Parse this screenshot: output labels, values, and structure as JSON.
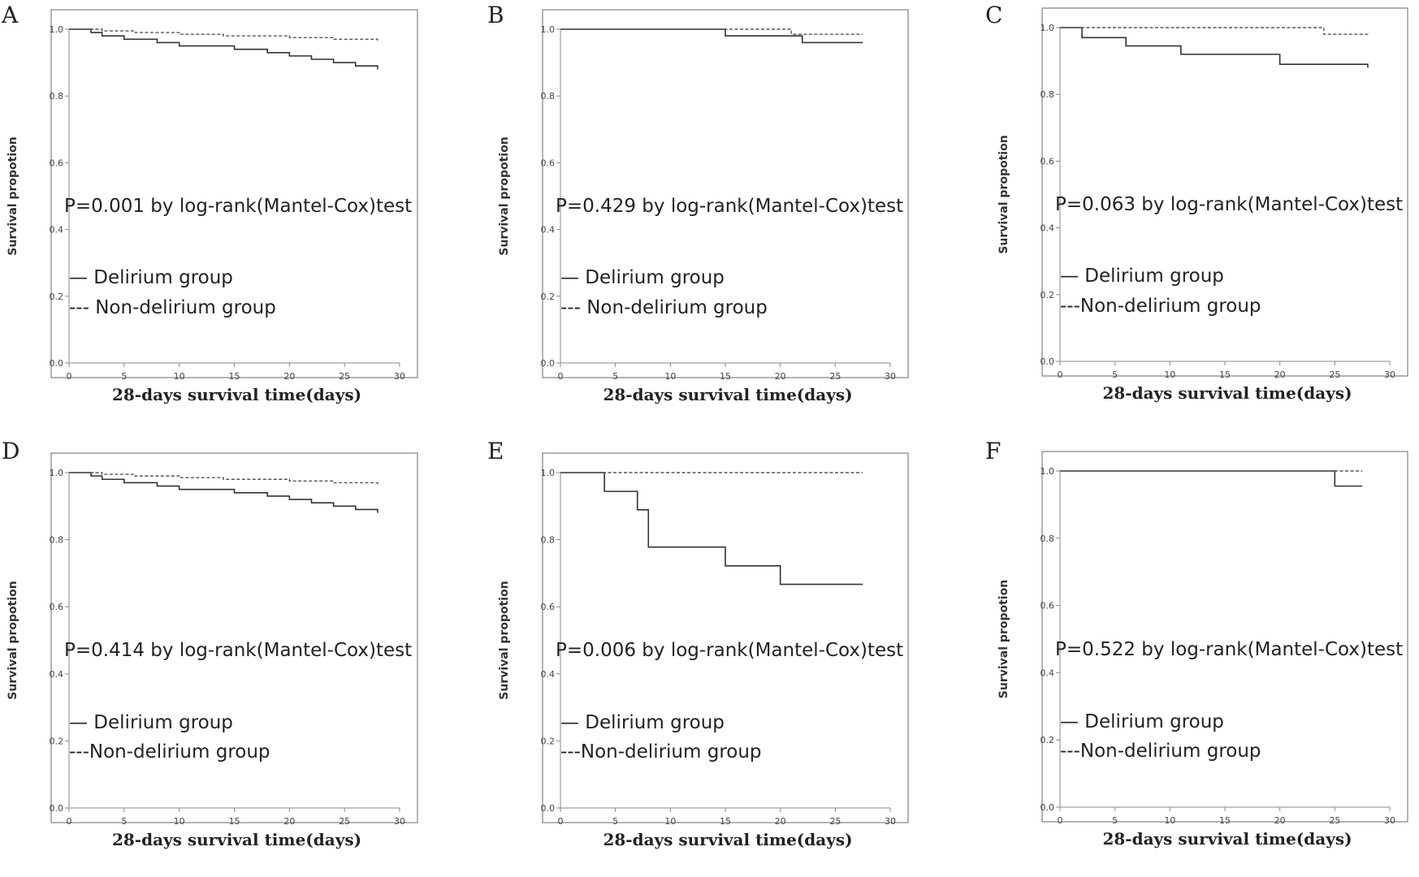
{
  "chart_data": [
    {
      "type": "line",
      "step": true,
      "panel": "A",
      "xlabel": "28-days survival time(days)",
      "ylabel": "Survival propotion",
      "xlim": [
        0,
        30
      ],
      "ylim": [
        0.0,
        1.0
      ],
      "xticks": [
        "0",
        "5",
        "10",
        "15",
        "20",
        "25",
        "30"
      ],
      "yticks": [
        "0.0",
        "0.2",
        "0.4",
        "0.6",
        "0.8",
        "1.0"
      ],
      "annotation": "P=0.001 by log-rank(Mantel-Cox)test",
      "grid": false,
      "legend": "bottom-left",
      "series": [
        {
          "name": "Delirium group",
          "style": "solid",
          "x": [
            0,
            2,
            3,
            5,
            8,
            10,
            12,
            15,
            18,
            20,
            22,
            24,
            26,
            28
          ],
          "y": [
            1.0,
            0.99,
            0.98,
            0.97,
            0.96,
            0.95,
            0.95,
            0.94,
            0.93,
            0.92,
            0.91,
            0.9,
            0.89,
            0.88
          ]
        },
        {
          "name": "Non-delirium group",
          "style": "dashed",
          "x": [
            0,
            3,
            6,
            10,
            14,
            20,
            24,
            28
          ],
          "y": [
            1.0,
            0.995,
            0.99,
            0.985,
            0.98,
            0.975,
            0.97,
            0.965
          ]
        }
      ]
    },
    {
      "type": "line",
      "step": true,
      "panel": "B",
      "xlabel": "28-days survival time(days)",
      "ylabel": "Survival propotion",
      "xlim": [
        0,
        30
      ],
      "ylim": [
        0.0,
        1.0
      ],
      "xticks": [
        "0",
        "5",
        "10",
        "15",
        "20",
        "25",
        "30"
      ],
      "yticks": [
        "0.0",
        "0.2",
        "0.4",
        "0.6",
        "0.8",
        "1.0"
      ],
      "annotation": "P=0.429 by log-rank(Mantel-Cox)test",
      "grid": false,
      "legend": "bottom-left",
      "series": [
        {
          "name": "Delirium group",
          "style": "solid",
          "x": [
            0,
            15,
            21,
            22,
            27.5
          ],
          "y": [
            1.0,
            0.98,
            0.98,
            0.96,
            0.96
          ]
        },
        {
          "name": "Non-delirium group",
          "style": "dashed",
          "x": [
            0,
            21,
            27.5
          ],
          "y": [
            1.0,
            0.985,
            0.985
          ]
        }
      ]
    },
    {
      "type": "line",
      "step": true,
      "panel": "C",
      "xlabel": "28-days survival time(days)",
      "ylabel": "Survival propotion",
      "xlim": [
        0,
        30
      ],
      "ylim": [
        0.0,
        1.0
      ],
      "xticks": [
        "0",
        "5",
        "10",
        "15",
        "20",
        "25",
        "30"
      ],
      "yticks": [
        "0.0",
        "0.2",
        "0.4",
        "0.6",
        "0.8",
        "1.0"
      ],
      "annotation": "P=0.063 by log-rank(Mantel-Cox)test",
      "grid": false,
      "legend": "bottom-left",
      "series": [
        {
          "name": "Delirium group",
          "style": "solid",
          "x": [
            0,
            2,
            6,
            11,
            20,
            28
          ],
          "y": [
            1.0,
            0.97,
            0.945,
            0.92,
            0.89,
            0.88
          ]
        },
        {
          "name": "Non-delirium group",
          "style": "dashed",
          "x": [
            0,
            24,
            28
          ],
          "y": [
            1.0,
            0.98,
            0.975
          ]
        }
      ]
    },
    {
      "type": "line",
      "step": true,
      "panel": "D",
      "xlabel": "28-days survival time(days)",
      "ylabel": "Survival propotion",
      "xlim": [
        0,
        30
      ],
      "ylim": [
        0.0,
        1.0
      ],
      "xticks": [
        "0",
        "5",
        "10",
        "15",
        "20",
        "25",
        "30"
      ],
      "yticks": [
        "0.0",
        "0.2",
        "0.4",
        "0.6",
        "0.8",
        "1.0"
      ],
      "annotation": "P=0.414 by log-rank(Mantel-Cox)test",
      "grid": false,
      "legend": "bottom-left",
      "series": [
        {
          "name": "Delirium group",
          "style": "solid",
          "x": [
            0,
            2,
            3,
            5,
            8,
            10,
            12,
            15,
            18,
            20,
            22,
            24,
            26,
            28
          ],
          "y": [
            1.0,
            0.99,
            0.98,
            0.97,
            0.96,
            0.95,
            0.95,
            0.94,
            0.93,
            0.92,
            0.91,
            0.9,
            0.89,
            0.88
          ]
        },
        {
          "name": "Non-delirium group",
          "style": "dashed",
          "x": [
            0,
            3,
            6,
            10,
            14,
            20,
            24,
            28
          ],
          "y": [
            1.0,
            0.995,
            0.99,
            0.985,
            0.98,
            0.975,
            0.97,
            0.965
          ]
        }
      ]
    },
    {
      "type": "line",
      "step": true,
      "panel": "E",
      "xlabel": "28-days survival time(days)",
      "ylabel": "Survival propotion",
      "xlim": [
        0,
        30
      ],
      "ylim": [
        0.0,
        1.0
      ],
      "xticks": [
        "0",
        "5",
        "10",
        "15",
        "20",
        "25",
        "30"
      ],
      "yticks": [
        "0.0",
        "0.2",
        "0.4",
        "0.6",
        "0.8",
        "1.0"
      ],
      "annotation": "P=0.006 by log-rank(Mantel-Cox)test",
      "grid": false,
      "legend": "bottom-left",
      "series": [
        {
          "name": "Delirium group",
          "style": "solid",
          "x": [
            0,
            4,
            7,
            8,
            15,
            20,
            27.5
          ],
          "y": [
            1.0,
            0.944,
            0.889,
            0.778,
            0.722,
            0.667,
            0.667
          ]
        },
        {
          "name": "Non-delirium group",
          "style": "dashed",
          "x": [
            0,
            27.5
          ],
          "y": [
            1.0,
            1.0
          ]
        }
      ]
    },
    {
      "type": "line",
      "step": true,
      "panel": "F",
      "xlabel": "28-days survival time(days)",
      "ylabel": "Survival propotion",
      "xlim": [
        0,
        30
      ],
      "ylim": [
        0.0,
        1.0
      ],
      "xticks": [
        "0",
        "5",
        "10",
        "15",
        "20",
        "25",
        "30"
      ],
      "yticks": [
        "0.0",
        "0.2",
        "0.4",
        "0.6",
        "0.8",
        "1.0"
      ],
      "annotation": "P=0.522 by log-rank(Mantel-Cox)test",
      "grid": false,
      "legend": "bottom-left",
      "series": [
        {
          "name": "Delirium group",
          "style": "solid",
          "x": [
            0,
            25,
            27.5
          ],
          "y": [
            1.0,
            0.955,
            0.955
          ]
        },
        {
          "name": "Non-delirium group",
          "style": "dashed",
          "x": [
            0,
            27.5
          ],
          "y": [
            1.0,
            1.0
          ]
        }
      ]
    }
  ],
  "legend_labels": [
    [
      "—  Delirium group",
      "---  Non-delirium group"
    ],
    [
      "—  Delirium group",
      "---  Non-delirium group"
    ],
    [
      "—  Delirium group",
      "---Non-delirium group"
    ],
    [
      "—  Delirium group",
      "---Non-delirium group"
    ],
    [
      "—  Delirium group",
      "---Non-delirium group"
    ],
    [
      "—  Delirium group",
      "---Non-delirium group"
    ]
  ]
}
